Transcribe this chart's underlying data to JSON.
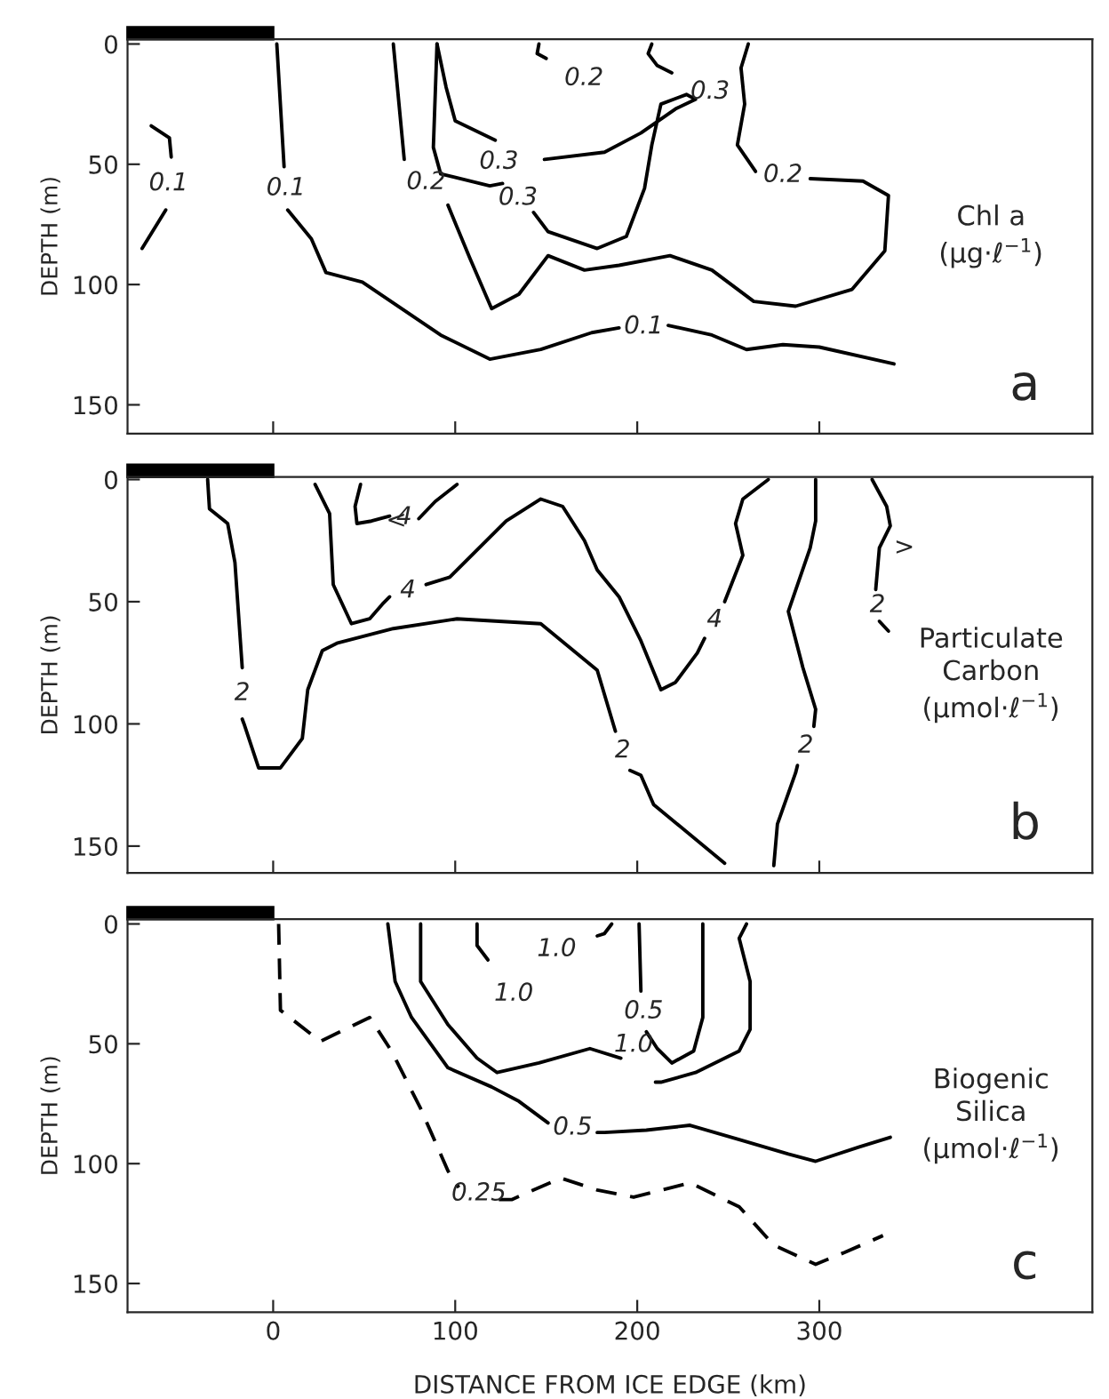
{
  "chart_data": [
    {
      "type": "line",
      "ylabel": "DEPTH (m)",
      "xlim": [
        -80,
        450
      ],
      "xticks": [
        0,
        100,
        200,
        300
      ],
      "ylim": [
        162,
        -2
      ],
      "yticks": [
        0,
        50,
        100,
        150
      ],
      "tick_labels": "y",
      "series": [
        {
          "color": "#000000",
          "x": [
            -67,
            -57,
            -56
          ],
          "values": [
            34,
            39,
            47
          ]
        },
        {
          "color": "#000000",
          "x": [
            -59,
            -72
          ],
          "values": [
            69,
            85
          ]
        },
        {
          "color": "#000000",
          "x": [
            2,
            6
          ],
          "values": [
            0,
            51
          ]
        },
        {
          "color": "#000000",
          "x": [
            8,
            21,
            29,
            49,
            92,
            119,
            147,
            175,
            190
          ],
          "values": [
            69,
            81,
            95,
            99,
            121,
            131,
            127,
            120,
            118
          ]
        },
        {
          "color": "#000000",
          "x": [
            217,
            241,
            260,
            280,
            300,
            341
          ],
          "values": [
            117,
            121,
            127,
            125,
            126,
            133
          ]
        },
        {
          "color": "#000000",
          "x": [
            66,
            72
          ],
          "values": [
            0,
            48
          ]
        },
        {
          "color": "#000000",
          "x": [
            96,
            108,
            120,
            135,
            151,
            171,
            190,
            218,
            241,
            264,
            287,
            318,
            336,
            338,
            324,
            295
          ],
          "values": [
            67,
            89,
            110,
            104,
            88,
            94,
            92,
            88,
            94,
            107,
            109,
            102,
            86,
            63,
            57,
            56
          ]
        },
        {
          "color": "#000000",
          "x": [
            265,
            255,
            259,
            257,
            261
          ],
          "values": [
            53,
            42,
            25,
            10,
            0
          ]
        },
        {
          "color": "#000000",
          "x": [
            90,
            95,
            100,
            122
          ],
          "values": [
            0,
            18,
            32,
            40
          ]
        },
        {
          "color": "#000000",
          "x": [
            149,
            182,
            202,
            221,
            232,
            227,
            213,
            208,
            204,
            194,
            178,
            151,
            143
          ],
          "values": [
            48,
            45,
            37,
            27,
            23,
            21,
            25,
            42,
            60,
            80,
            85,
            78,
            70
          ]
        },
        {
          "color": "#000000",
          "x": [
            126,
            119,
            92,
            88,
            90
          ],
          "values": [
            58,
            59,
            54,
            43,
            0
          ]
        },
        {
          "color": "#000000",
          "x": [
            146,
            145,
            150
          ],
          "values": [
            0,
            4,
            6
          ]
        },
        {
          "color": "#000000",
          "x": [
            208,
            206,
            211,
            219
          ],
          "values": [
            0,
            4,
            9,
            12
          ]
        }
      ],
      "annotations": [
        {
          "text": "0.1",
          "x": -56,
          "y": 47
        },
        {
          "text": "0.1",
          "x": 6,
          "y": 51
        },
        {
          "text": "0.1",
          "x": 190,
          "y": 118
        },
        {
          "text": "0.2",
          "x": 72,
          "y": 48
        },
        {
          "text": "0.2",
          "x": 295,
          "y": 56
        },
        {
          "text": "0.3",
          "x": 122,
          "y": 40
        },
        {
          "text": "0.3",
          "x": 143,
          "y": 70
        },
        {
          "text": "0.2",
          "x": 150,
          "y": 6
        },
        {
          "text": "0.3",
          "x": 219,
          "y": 12
        },
        "Chl a\n(μg·ℓ$^{−1}$)",
        "a"
      ]
    },
    {
      "type": "line",
      "ylabel": "DEPTH (m)",
      "xlim": [
        -80,
        450
      ],
      "xticks": [
        0,
        100,
        200,
        300
      ],
      "ylim": [
        161,
        -1
      ],
      "yticks": [
        0,
        50,
        100,
        150
      ],
      "tick_labels": "y",
      "series": [
        {
          "color": "#000000",
          "x": [
            -36,
            -35,
            -25,
            -21,
            -17
          ],
          "values": [
            0,
            12,
            18,
            34,
            77
          ]
        },
        {
          "color": "#000000",
          "x": [
            -17,
            -16,
            -8,
            4,
            16,
            19,
            27,
            35,
            66,
            101,
            147,
            178,
            188
          ],
          "values": [
            98,
            100,
            118,
            118,
            106,
            86,
            70,
            67,
            61,
            57,
            59,
            78,
            103
          ]
        },
        {
          "color": "#000000",
          "x": [
            196,
            202,
            209,
            248
          ],
          "values": [
            119,
            121,
            133,
            157
          ]
        },
        {
          "color": "#000000",
          "x": [
            48,
            45,
            46,
            54,
            64
          ],
          "values": [
            2,
            11,
            18,
            17,
            15
          ]
        },
        {
          "color": "#000000",
          "x": [
            80,
            89,
            101
          ],
          "values": [
            16,
            9,
            2
          ]
        },
        {
          "color": "#000000",
          "x": [
            23,
            31,
            33,
            43,
            53,
            60,
            64
          ],
          "values": [
            2,
            14,
            43,
            59,
            57,
            51,
            48
          ]
        },
        {
          "color": "#000000",
          "x": [
            84,
            97,
            128,
            147,
            159,
            171,
            178,
            190,
            202,
            213,
            221,
            233,
            237
          ],
          "values": [
            43,
            40,
            17,
            8,
            11,
            25,
            37,
            48,
            66,
            86,
            83,
            71,
            65
          ]
        },
        {
          "color": "#000000",
          "x": [
            248,
            258,
            254,
            258,
            272
          ],
          "values": [
            50,
            31,
            18,
            8,
            0
          ]
        },
        {
          "color": "#000000",
          "x": [
            298,
            298,
            295,
            283,
            291,
            298,
            297
          ],
          "values": [
            0,
            17,
            28,
            54,
            77,
            94,
            101
          ]
        },
        {
          "color": "#000000",
          "x": [
            288,
            287,
            277,
            275
          ],
          "values": [
            117,
            120,
            141,
            158
          ]
        },
        {
          "color": "#000000",
          "x": [
            329,
            337,
            339,
            333,
            331
          ],
          "values": [
            0,
            11,
            19,
            28,
            45
          ]
        },
        {
          "color": "#000000",
          "x": [
            333,
            338
          ],
          "values": [
            58,
            62
          ]
        }
      ],
      "annotations": [
        {
          "text": "<",
          "x": 54,
          "y": 17
        },
        {
          "text": ">",
          "x": 333,
          "y": 28
        },
        {
          "text": "2",
          "x": -17,
          "y": 77
        },
        {
          "text": "2",
          "x": 188,
          "y": 103
        },
        {
          "text": "4",
          "x": 64,
          "y": 15
        },
        {
          "text": "4",
          "x": 64,
          "y": 48
        },
        {
          "text": "4",
          "x": 237,
          "y": 65
        },
        {
          "text": "2",
          "x": 297,
          "y": 101
        },
        {
          "text": "2",
          "x": 331,
          "y": 45
        },
        "Particulate\nCarbon\n(μmol·ℓ$^{−1}$)",
        "b"
      ]
    },
    {
      "type": "line",
      "ylabel": "DEPTH (m)",
      "xlabel": "DISTANCE FROM ICE EDGE (km)",
      "xlim": [
        -80,
        450
      ],
      "xticks": [
        0,
        100,
        200,
        300
      ],
      "ylim": [
        162,
        -2
      ],
      "yticks": [
        0,
        50,
        100,
        150
      ],
      "series": [
        {
          "color": "#000000",
          "line_style": "dashed",
          "x": [
            3,
            4,
            26,
            53,
            65,
            81,
            96,
            102
          ],
          "values": [
            0,
            36,
            49,
            39,
            53,
            77,
            103,
            110
          ]
        },
        {
          "color": "#000000",
          "line_style": "dashed",
          "x": [
            124,
            131,
            158,
            178,
            198,
            229,
            256,
            275,
            298,
            314,
            335
          ],
          "values": [
            115,
            115,
            106,
            111,
            114,
            108,
            118,
            134,
            142,
            137,
            130
          ]
        },
        {
          "color": "#000000",
          "x": [
            63,
            67,
            76,
            96,
            120,
            135,
            151
          ],
          "values": [
            0,
            24,
            39,
            60,
            68,
            74,
            83
          ]
        },
        {
          "color": "#000000",
          "x": [
            178,
            182,
            205,
            229,
            256,
            283,
            298,
            322,
            339
          ],
          "values": [
            87,
            87,
            86,
            84,
            90,
            96,
            99,
            93,
            89
          ]
        },
        {
          "color": "#000000",
          "x": [
            81,
            81,
            96,
            112,
            123,
            146,
            174,
            191
          ],
          "values": [
            0,
            24,
            42,
            56,
            62,
            58,
            52,
            56
          ]
        },
        {
          "color": "#000000",
          "x": [
            210,
            213,
            232,
            256,
            262,
            262,
            256,
            260
          ],
          "values": [
            66,
            66,
            62,
            53,
            44,
            24,
            6,
            0
          ]
        },
        {
          "color": "#000000",
          "x": [
            201,
            202
          ],
          "values": [
            0,
            28
          ]
        },
        {
          "color": "#000000",
          "x": [
            205,
            211,
            219,
            231,
            236,
            236
          ],
          "values": [
            45,
            52,
            58,
            53,
            39,
            0
          ]
        },
        {
          "color": "#000000",
          "x": [
            112,
            112,
            118
          ],
          "values": [
            0,
            9,
            15
          ]
        },
        {
          "color": "#000000",
          "x": [
            186,
            182,
            178
          ],
          "values": [
            0,
            4,
            5
          ]
        }
      ],
      "annotations": [
        {
          "text": "0.25",
          "x": 102,
          "y": 110
        },
        {
          "text": "0.5",
          "x": 151,
          "y": 83
        },
        {
          "text": "1.0",
          "x": 191,
          "y": 56
        },
        {
          "text": "0.5",
          "x": 202,
          "y": 28
        },
        {
          "text": "1.0",
          "x": 118,
          "y": 15
        },
        {
          "text": "1.0",
          "x": 178,
          "y": 5
        },
        "Biogenic\nSilica\n(μmol·ℓ$^{−1}$)",
        "c"
      ]
    }
  ]
}
